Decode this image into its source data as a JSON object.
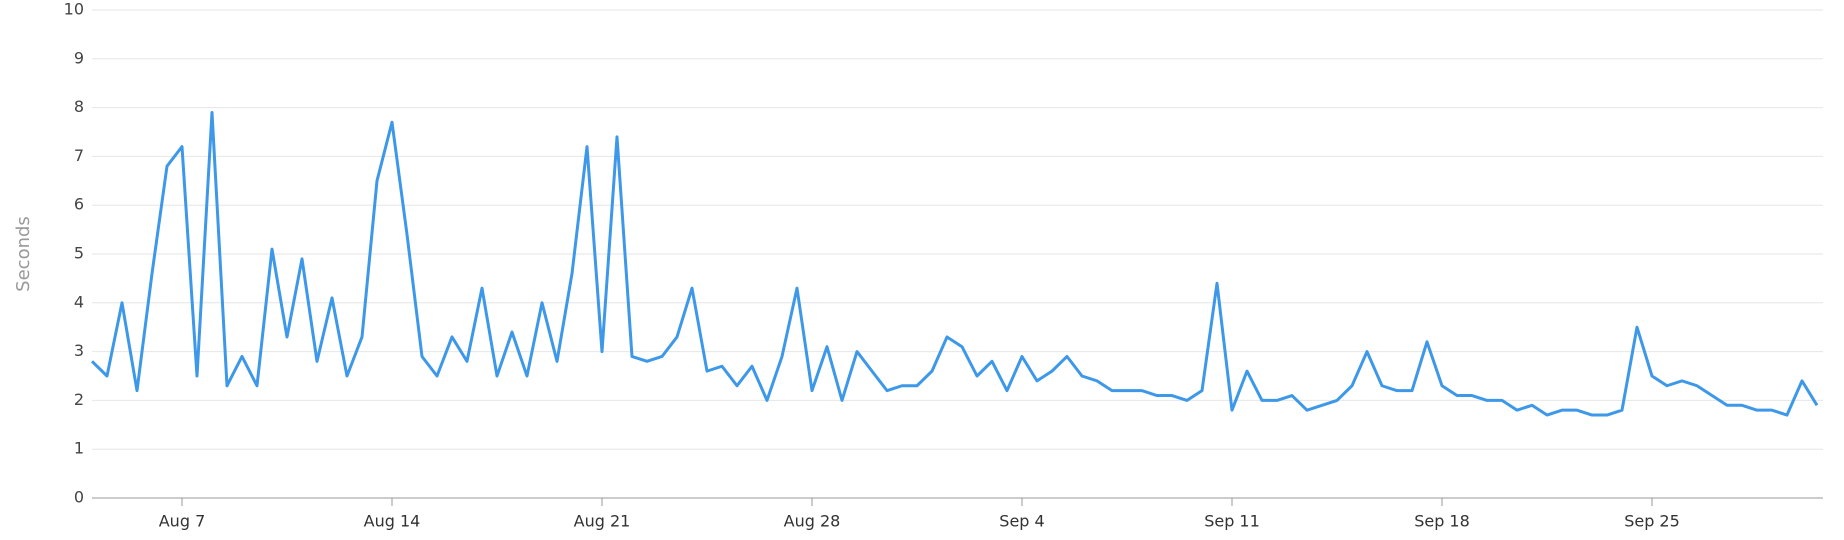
{
  "chart_data": {
    "type": "line",
    "y_label": "Seconds",
    "x": [
      216,
      216.5,
      217,
      217.5,
      218,
      218.5,
      219,
      219.5,
      220,
      220.5,
      221,
      221.5,
      222,
      222.5,
      223,
      223.5,
      224,
      224.5,
      225,
      225.5,
      226,
      226.5,
      227,
      227.5,
      228,
      228.5,
      229,
      229.5,
      230,
      230.5,
      231,
      231.5,
      232,
      232.5,
      233,
      233.5,
      234,
      234.5,
      235,
      235.5,
      236,
      236.5,
      237,
      237.5,
      238,
      238.5,
      239,
      239.5,
      240,
      240.5,
      241,
      241.5,
      242,
      242.5,
      243,
      243.5,
      244,
      244.5,
      245,
      245.5,
      246,
      246.5,
      247,
      247.5,
      248,
      248.5,
      249,
      249.5,
      250,
      250.5,
      251,
      251.5,
      252,
      252.5,
      253,
      253.5,
      254,
      254.5,
      255,
      255.5,
      256,
      256.5,
      257,
      257.5,
      258,
      258.5,
      259,
      259.5,
      260,
      260.5,
      261,
      261.5,
      262,
      262.5,
      263,
      263.5,
      264,
      264.5,
      265,
      265.5,
      266,
      266.5,
      267,
      267.5,
      268,
      268.5,
      269,
      269.5,
      270,
      270.5,
      271,
      271.5,
      272,
      272.5,
      273,
      273.5
    ],
    "series": [
      {
        "name": "Seconds",
        "color": "#3d98e9",
        "values": [
          2.8,
          2.5,
          4.0,
          2.2,
          4.6,
          6.8,
          7.2,
          2.5,
          7.9,
          2.3,
          2.9,
          2.3,
          5.1,
          3.3,
          4.9,
          2.8,
          4.1,
          2.5,
          3.3,
          6.5,
          7.7,
          5.4,
          2.9,
          2.5,
          3.3,
          2.8,
          4.3,
          2.5,
          3.4,
          2.5,
          4.0,
          2.8,
          4.6,
          7.2,
          3.0,
          7.4,
          2.9,
          2.8,
          2.9,
          3.3,
          4.3,
          2.6,
          2.7,
          2.3,
          2.7,
          2.0,
          2.9,
          4.3,
          2.2,
          3.1,
          2.0,
          3.0,
          2.6,
          2.2,
          2.3,
          2.3,
          2.6,
          3.3,
          3.1,
          2.5,
          2.8,
          2.2,
          2.9,
          2.4,
          2.6,
          2.9,
          2.5,
          2.4,
          2.2,
          2.2,
          2.2,
          2.1,
          2.1,
          2.0,
          2.2,
          4.4,
          1.8,
          2.6,
          2.0,
          2.0,
          2.1,
          1.8,
          1.9,
          2.0,
          2.3,
          3.0,
          2.3,
          2.2,
          2.2,
          3.2,
          2.3,
          2.1,
          2.1,
          2.0,
          2.0,
          1.8,
          1.9,
          1.7,
          1.8,
          1.8,
          1.7,
          1.7,
          1.8,
          3.5,
          2.5,
          2.3,
          2.4,
          2.3,
          2.1,
          1.9,
          1.9,
          1.8,
          1.8,
          1.7,
          2.4,
          1.9
        ]
      }
    ],
    "xlim": [
      216,
      273.7
    ],
    "xticks": [
      {
        "value": 219,
        "label": "Aug 7"
      },
      {
        "value": 226,
        "label": "Aug 14"
      },
      {
        "value": 233,
        "label": "Aug 21"
      },
      {
        "value": 240,
        "label": "Aug 28"
      },
      {
        "value": 247,
        "label": "Sep 4"
      },
      {
        "value": 254,
        "label": "Sep 11"
      },
      {
        "value": 261,
        "label": "Sep 18"
      },
      {
        "value": 268,
        "label": "Sep 25"
      }
    ],
    "ylim": [
      0,
      10
    ],
    "yticks": [
      0,
      1,
      2,
      3,
      4,
      5,
      6,
      7,
      8,
      9,
      10
    ],
    "grid": true
  }
}
